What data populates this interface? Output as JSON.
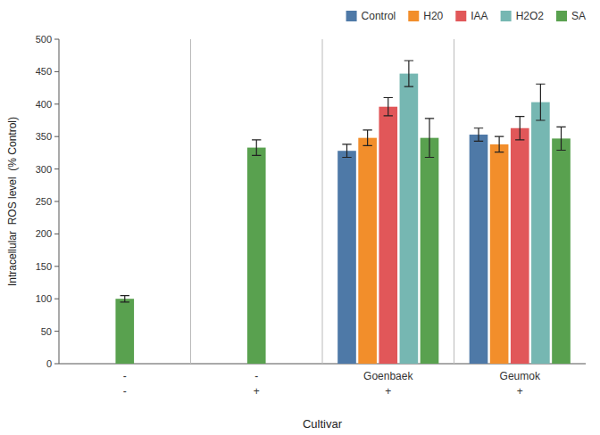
{
  "chart_data": {
    "type": "bar",
    "xlabel": "Cultivar",
    "ylabel": "Intracellular  ROS level  (% Control)",
    "categories": [
      [
        "-",
        "-"
      ],
      [
        "-",
        "+"
      ],
      [
        "Goenbaek",
        "+"
      ],
      [
        "Geumok",
        "+"
      ]
    ],
    "series": [
      {
        "name": "Control",
        "values": [
          null,
          null,
          328,
          353
        ],
        "errors": [
          null,
          null,
          10,
          10
        ]
      },
      {
        "name": "H20",
        "values": [
          null,
          null,
          348,
          338
        ],
        "errors": [
          null,
          null,
          12,
          12
        ]
      },
      {
        "name": "IAA",
        "values": [
          null,
          null,
          396,
          363
        ],
        "errors": [
          null,
          null,
          14,
          18
        ]
      },
      {
        "name": "H2O2",
        "values": [
          null,
          null,
          447,
          403
        ],
        "errors": [
          null,
          null,
          20,
          28
        ]
      },
      {
        "name": "SA",
        "values": [
          100,
          333,
          348,
          347
        ],
        "errors": [
          5,
          12,
          30,
          18
        ]
      }
    ],
    "ylim": [
      0,
      500
    ],
    "yticks": [
      0,
      50,
      100,
      150,
      200,
      250,
      300,
      350,
      400,
      450,
      500
    ],
    "grid": false,
    "legend": "upper right"
  }
}
